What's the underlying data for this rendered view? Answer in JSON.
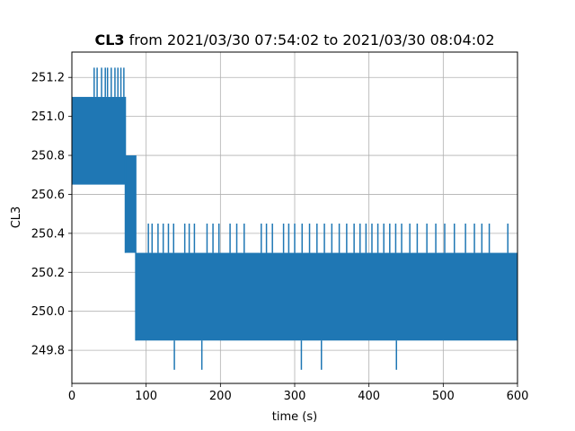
{
  "chart_data": {
    "type": "line",
    "title_bold": "CL3",
    "title_rest": " from 2021/03/30 07:54:02 to 2021/03/30 08:04:02",
    "xlabel": "time (s)",
    "ylabel": "CL3",
    "xlim": [
      0,
      600
    ],
    "ylim": [
      249.63,
      251.33
    ],
    "xticks": [
      0,
      100,
      200,
      300,
      400,
      500,
      600
    ],
    "yticks": [
      249.8,
      250.0,
      250.2,
      250.4,
      250.6,
      250.8,
      251.0,
      251.2
    ],
    "ytick_labels": [
      "249.8",
      "250.0",
      "250.2",
      "250.4",
      "250.6",
      "250.8",
      "251.0",
      "251.2"
    ],
    "grid": true,
    "series": [
      {
        "color": "#1f77b4",
        "bands": [
          {
            "x_start": 0,
            "x_end": 72,
            "low": 250.65,
            "high": 251.1
          },
          {
            "x_start": 72,
            "x_end": 86,
            "low": 250.3,
            "high": 250.8
          },
          {
            "x_start": 86,
            "x_end": 600,
            "low": 249.85,
            "high": 250.3
          }
        ],
        "spikes_high": [
          {
            "x": 30,
            "y": 251.25
          },
          {
            "x": 34,
            "y": 251.25
          },
          {
            "x": 40,
            "y": 251.25
          },
          {
            "x": 45,
            "y": 251.25
          },
          {
            "x": 48,
            "y": 251.25
          },
          {
            "x": 53,
            "y": 251.25
          },
          {
            "x": 58,
            "y": 251.25
          },
          {
            "x": 62,
            "y": 251.25
          },
          {
            "x": 66,
            "y": 251.25
          },
          {
            "x": 70,
            "y": 251.25
          },
          {
            "x": 103,
            "y": 250.45
          },
          {
            "x": 108,
            "y": 250.45
          },
          {
            "x": 116,
            "y": 250.45
          },
          {
            "x": 123,
            "y": 250.45
          },
          {
            "x": 130,
            "y": 250.45
          },
          {
            "x": 137,
            "y": 250.45
          },
          {
            "x": 152,
            "y": 250.45
          },
          {
            "x": 158,
            "y": 250.45
          },
          {
            "x": 165,
            "y": 250.45
          },
          {
            "x": 182,
            "y": 250.45
          },
          {
            "x": 190,
            "y": 250.45
          },
          {
            "x": 198,
            "y": 250.45
          },
          {
            "x": 213,
            "y": 250.45
          },
          {
            "x": 222,
            "y": 250.45
          },
          {
            "x": 232,
            "y": 250.45
          },
          {
            "x": 255,
            "y": 250.45
          },
          {
            "x": 262,
            "y": 250.45
          },
          {
            "x": 270,
            "y": 250.45
          },
          {
            "x": 285,
            "y": 250.45
          },
          {
            "x": 292,
            "y": 250.45
          },
          {
            "x": 300,
            "y": 250.45
          },
          {
            "x": 310,
            "y": 250.45
          },
          {
            "x": 320,
            "y": 250.45
          },
          {
            "x": 330,
            "y": 250.45
          },
          {
            "x": 340,
            "y": 250.45
          },
          {
            "x": 350,
            "y": 250.45
          },
          {
            "x": 360,
            "y": 250.45
          },
          {
            "x": 370,
            "y": 250.45
          },
          {
            "x": 380,
            "y": 250.45
          },
          {
            "x": 388,
            "y": 250.45
          },
          {
            "x": 396,
            "y": 250.45
          },
          {
            "x": 404,
            "y": 250.45
          },
          {
            "x": 412,
            "y": 250.45
          },
          {
            "x": 420,
            "y": 250.45
          },
          {
            "x": 428,
            "y": 250.45
          },
          {
            "x": 436,
            "y": 250.45
          },
          {
            "x": 444,
            "y": 250.45
          },
          {
            "x": 455,
            "y": 250.45
          },
          {
            "x": 465,
            "y": 250.45
          },
          {
            "x": 478,
            "y": 250.45
          },
          {
            "x": 490,
            "y": 250.45
          },
          {
            "x": 502,
            "y": 250.45
          },
          {
            "x": 515,
            "y": 250.45
          },
          {
            "x": 530,
            "y": 250.45
          },
          {
            "x": 542,
            "y": 250.45
          },
          {
            "x": 552,
            "y": 250.45
          },
          {
            "x": 562,
            "y": 250.45
          },
          {
            "x": 587,
            "y": 250.45
          }
        ],
        "spikes_low": [
          {
            "x": 138,
            "y": 249.7
          },
          {
            "x": 175,
            "y": 249.7
          },
          {
            "x": 309,
            "y": 249.7
          },
          {
            "x": 336,
            "y": 249.7
          },
          {
            "x": 437,
            "y": 249.7
          }
        ]
      }
    ]
  }
}
